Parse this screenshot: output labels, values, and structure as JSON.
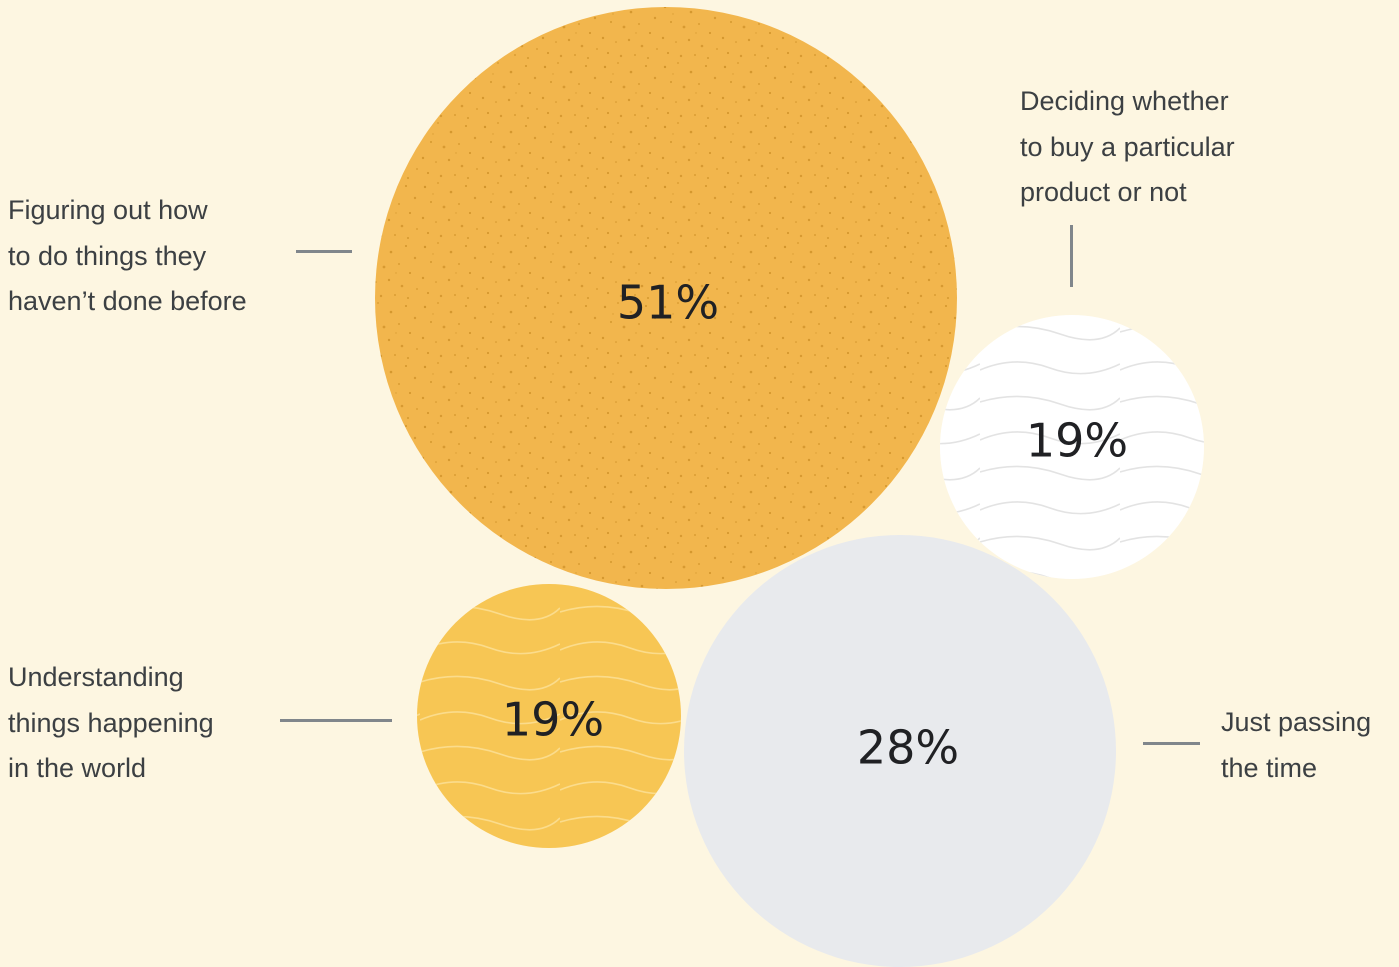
{
  "chart_data": {
    "type": "bubble",
    "title": "",
    "series": [
      {
        "value": 51,
        "label": "51%",
        "category_lines": [
          "Figuring out how",
          "to do things they",
          "haven’t done before"
        ],
        "color": "#f2b64d",
        "texture": "speckle"
      },
      {
        "value": 19,
        "label": "19%",
        "category_lines": [
          "Deciding whether",
          "to buy a particular",
          "product or not"
        ],
        "color": "#ffffff",
        "texture": "wavy-lines"
      },
      {
        "value": 19,
        "label": "19%",
        "category_lines": [
          "Understanding",
          "things happening",
          "in the world"
        ],
        "color": "#f7c654",
        "texture": "wavy-lines"
      },
      {
        "value": 28,
        "label": "28%",
        "category_lines": [
          "Just passing",
          "the time"
        ],
        "color": "#e8eaed",
        "texture": "none"
      }
    ]
  },
  "colors": {
    "background": "#fdf6e1",
    "leader_line": "#80868b",
    "label_text": "#3c4043",
    "value_text": "#202124"
  }
}
